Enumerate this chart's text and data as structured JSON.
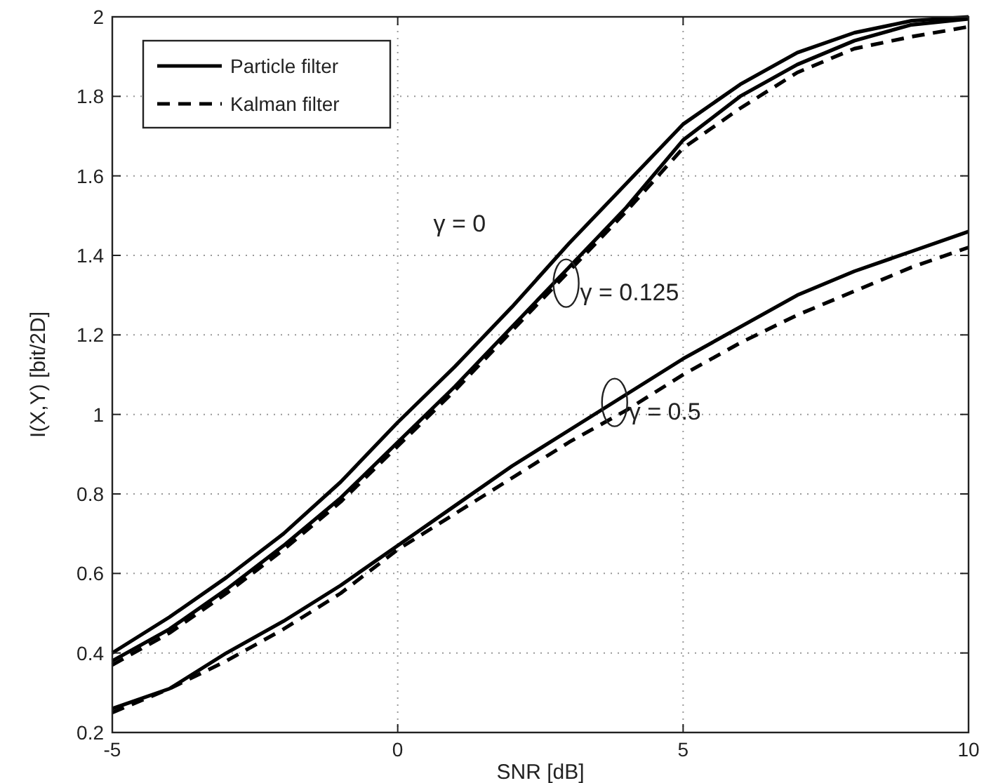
{
  "chart_data": {
    "type": "line",
    "xlabel": "SNR [dB]",
    "ylabel": "I(X,Y) [bit/2D]",
    "x": [
      -5,
      -4,
      -3,
      -2,
      -1,
      0,
      1,
      2,
      3,
      4,
      5,
      6,
      7,
      8,
      9,
      10
    ],
    "series": [
      {
        "name": "Particle filter",
        "color": "#000000",
        "line_style": "solid",
        "values": [
          0.4,
          0.49,
          0.59,
          0.7,
          0.83,
          0.98,
          1.12,
          1.27,
          1.43,
          1.58,
          1.73,
          1.83,
          1.91,
          1.96,
          1.99,
          2.0
        ]
      },
      {
        "color": "#000000",
        "line_style": "solid",
        "values": [
          0.38,
          0.46,
          0.56,
          0.67,
          0.79,
          0.93,
          1.07,
          1.22,
          1.37,
          1.52,
          1.69,
          1.8,
          1.88,
          1.94,
          1.98,
          1.995
        ]
      },
      {
        "name": "Kalman filter",
        "color": "#000000",
        "line_style": "dashed",
        "values": [
          0.37,
          0.45,
          0.55,
          0.66,
          0.78,
          0.92,
          1.06,
          1.21,
          1.36,
          1.51,
          1.67,
          1.77,
          1.86,
          1.92,
          1.95,
          1.975
        ]
      },
      {
        "color": "#000000",
        "line_style": "solid",
        "values": [
          0.26,
          0.31,
          0.4,
          0.48,
          0.57,
          0.67,
          0.77,
          0.87,
          0.96,
          1.05,
          1.14,
          1.22,
          1.3,
          1.36,
          1.41,
          1.46
        ]
      },
      {
        "color": "#000000",
        "line_style": "dashed",
        "values": [
          0.25,
          0.31,
          0.38,
          0.46,
          0.55,
          0.66,
          0.75,
          0.84,
          0.93,
          1.01,
          1.1,
          1.18,
          1.25,
          1.31,
          1.37,
          1.42
        ]
      }
    ],
    "xlim": [
      -5,
      10
    ],
    "xticks": [
      -5,
      0,
      5,
      10
    ],
    "ylim": [
      0.2,
      2
    ],
    "yticks": [
      0.2,
      0.4,
      0.6,
      0.8,
      1,
      1.2,
      1.4,
      1.6,
      1.8,
      2
    ],
    "grid": true,
    "legend": "top left",
    "marker": "none",
    "annotations": [
      "γ = 0",
      {
        "text": "γ = 0.125",
        "x": 2.95,
        "y": 1.33
      },
      {
        "text": "γ = 0.5",
        "x": 3.8,
        "y": 1.03
      }
    ]
  }
}
